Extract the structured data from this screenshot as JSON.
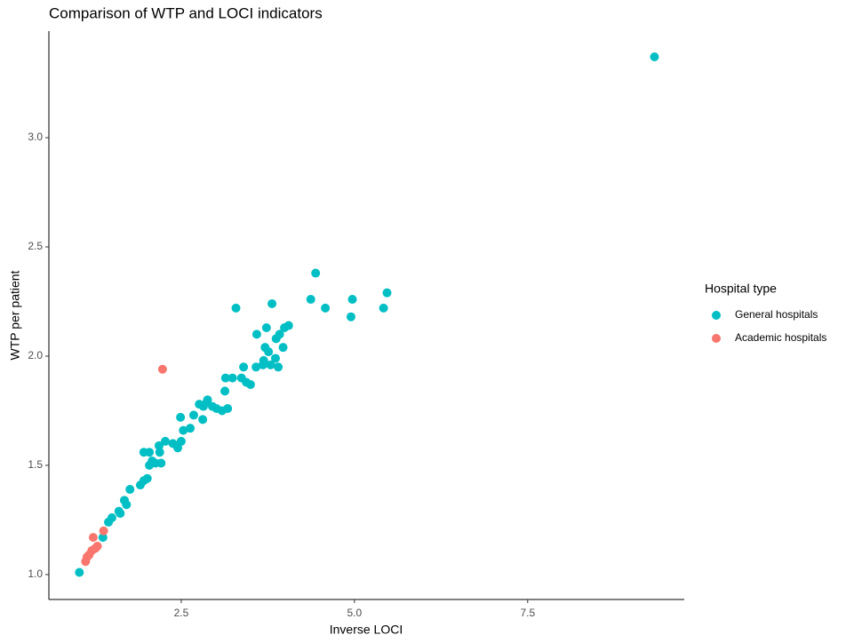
{
  "chart_data": {
    "type": "scatter",
    "title": "Comparison of WTP and LOCI indicators",
    "x_label": "Inverse LOCI",
    "y_label": "WTP per patient",
    "legend_title": "Hospital type",
    "legend": "right",
    "xlim": [
      0.59,
      9.76
    ],
    "ylim": [
      0.886,
      3.488
    ],
    "xticks": [
      2.5,
      {
        "value": 5,
        "label": "5.0"
      },
      7.5
    ],
    "yticks": [
      {
        "value": 1,
        "label": "1.0"
      },
      1.5,
      {
        "value": 2,
        "label": "2.0"
      },
      2.5,
      {
        "value": 3,
        "label": "3.0"
      }
    ],
    "series": [
      {
        "name": "General hospitals",
        "color": "#00BFC4",
        "x": [
          1.03,
          9.33,
          1.37,
          1.45,
          1.5,
          1.6,
          1.62,
          1.68,
          1.71,
          1.76,
          1.91,
          1.96,
          2.01,
          1.96,
          2.04,
          2.04,
          2.08,
          2.13,
          2.21,
          2.18,
          2.19,
          2.27,
          2.38,
          2.45,
          2.5,
          2.49,
          2.53,
          2.63,
          2.68,
          2.76,
          2.81,
          2.82,
          2.87,
          2.88,
          2.95,
          3.01,
          3.09,
          3.17,
          3.13,
          3.14,
          3.24,
          3.29,
          3.37,
          3.4,
          3.44,
          3.5,
          3.58,
          3.59,
          3.68,
          3.69,
          3.71,
          3.73,
          3.76,
          3.79,
          3.81,
          3.86,
          3.9,
          3.87,
          3.92,
          3.97,
          3.99,
          4.05,
          4.37,
          4.44,
          4.58,
          4.95,
          4.97,
          5.42,
          5.47
        ],
        "values": [
          1.01,
          3.37,
          1.17,
          1.24,
          1.26,
          1.29,
          1.28,
          1.34,
          1.32,
          1.39,
          1.41,
          1.43,
          1.44,
          1.56,
          1.56,
          1.5,
          1.52,
          1.51,
          1.51,
          1.59,
          1.56,
          1.61,
          1.6,
          1.58,
          1.61,
          1.72,
          1.66,
          1.67,
          1.73,
          1.78,
          1.71,
          1.77,
          1.79,
          1.8,
          1.77,
          1.76,
          1.75,
          1.76,
          1.84,
          1.9,
          1.9,
          2.22,
          1.9,
          1.95,
          1.88,
          1.87,
          1.95,
          2.1,
          1.96,
          1.98,
          2.04,
          2.13,
          2.02,
          1.96,
          2.24,
          1.99,
          1.95,
          2.08,
          2.1,
          2.04,
          2.13,
          2.14,
          2.26,
          2.38,
          2.22,
          2.18,
          2.26,
          2.22,
          2.29
        ]
      },
      {
        "name": "Academic hospitals",
        "color": "#F8766D",
        "x": [
          2.23,
          1.12,
          1.14,
          1.17,
          1.21,
          1.23,
          1.26,
          1.29,
          1.38
        ],
        "values": [
          1.94,
          1.06,
          1.08,
          1.09,
          1.11,
          1.17,
          1.12,
          1.13,
          1.2
        ]
      }
    ]
  }
}
